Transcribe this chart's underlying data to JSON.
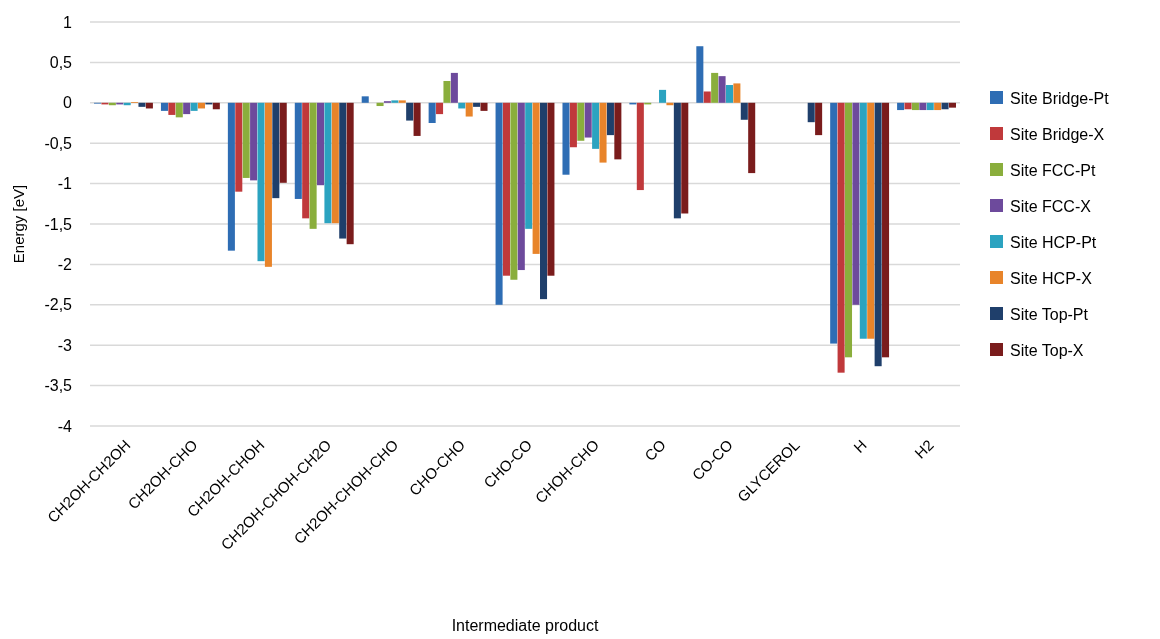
{
  "chart_data": {
    "type": "bar",
    "xlabel": "Intermediate product",
    "ylabel": "Energy [eV]",
    "categories": [
      "CH2OH-CH2OH",
      "CH2OH-CHO",
      "CH2OH-CHOH",
      "CH2OH-CHOH-CH2O",
      "CH2OH-CHOH-CHO",
      "CHO-CHO",
      "CHO-CO",
      "CHOH-CHO",
      "CO",
      "CO-CO",
      "GLYCEROL",
      "H",
      "H2"
    ],
    "series": [
      {
        "name": "Site Bridge-Pt",
        "color": "#2e6db4",
        "values": [
          -0.01,
          -0.1,
          -1.83,
          -1.19,
          0.08,
          -0.25,
          -2.5,
          -0.89,
          -0.02,
          0.7,
          0,
          -2.98,
          -0.09
        ]
      },
      {
        "name": "Site Bridge-X",
        "color": "#c0393b",
        "values": [
          -0.02,
          -0.15,
          -1.1,
          -1.43,
          0,
          -0.14,
          -2.14,
          -0.55,
          -1.08,
          0.14,
          0,
          -3.34,
          -0.08
        ]
      },
      {
        "name": "Site FCC-Pt",
        "color": "#8aae3c",
        "values": [
          -0.03,
          -0.18,
          -0.93,
          -1.56,
          -0.04,
          0.27,
          -2.19,
          -0.47,
          -0.02,
          0.37,
          0,
          -3.15,
          -0.09
        ]
      },
      {
        "name": "Site FCC-X",
        "color": "#6d4a9c",
        "values": [
          -0.02,
          -0.14,
          -0.96,
          -1.02,
          0.02,
          0.37,
          -2.07,
          -0.43,
          0,
          0.33,
          0,
          -2.5,
          -0.09
        ]
      },
      {
        "name": "Site HCP-Pt",
        "color": "#2ba3c0",
        "values": [
          -0.03,
          -0.1,
          -1.96,
          -1.49,
          0.03,
          -0.07,
          -1.56,
          -0.57,
          0.16,
          0.22,
          0,
          -2.92,
          -0.09
        ]
      },
      {
        "name": "Site HCP-X",
        "color": "#e8842a",
        "values": [
          0.01,
          -0.07,
          -2.03,
          -1.49,
          0.03,
          -0.17,
          -1.87,
          -0.74,
          -0.03,
          0.24,
          0,
          -2.92,
          -0.09
        ]
      },
      {
        "name": "Site Top-Pt",
        "color": "#1f3f6b",
        "values": [
          -0.05,
          -0.02,
          -1.18,
          -1.68,
          -0.22,
          -0.05,
          -2.43,
          -0.4,
          -1.43,
          -0.21,
          -0.24,
          -3.26,
          -0.08
        ]
      },
      {
        "name": "Site Top-X",
        "color": "#7a1c1c",
        "values": [
          -0.07,
          -0.08,
          -0.99,
          -1.75,
          -0.41,
          -0.1,
          -2.14,
          -0.7,
          -1.37,
          -0.87,
          -0.4,
          -3.15,
          -0.06
        ]
      }
    ],
    "ylim": [
      -4,
      1
    ],
    "yticks": [
      {
        "value": -4,
        "label": "-4"
      },
      {
        "value": -3.5,
        "label": "-3,5"
      },
      {
        "value": -3,
        "label": "-3"
      },
      {
        "value": -2.5,
        "label": "-2,5"
      },
      {
        "value": -2,
        "label": "-2"
      },
      {
        "value": -1.5,
        "label": "-1,5"
      },
      {
        "value": -1,
        "label": "-1"
      },
      {
        "value": -0.5,
        "label": "-0,5"
      },
      {
        "value": 0,
        "label": "0"
      },
      {
        "value": 0.5,
        "label": "0,5"
      },
      {
        "value": 1,
        "label": "1"
      }
    ],
    "grid": "y",
    "legend": "right"
  }
}
